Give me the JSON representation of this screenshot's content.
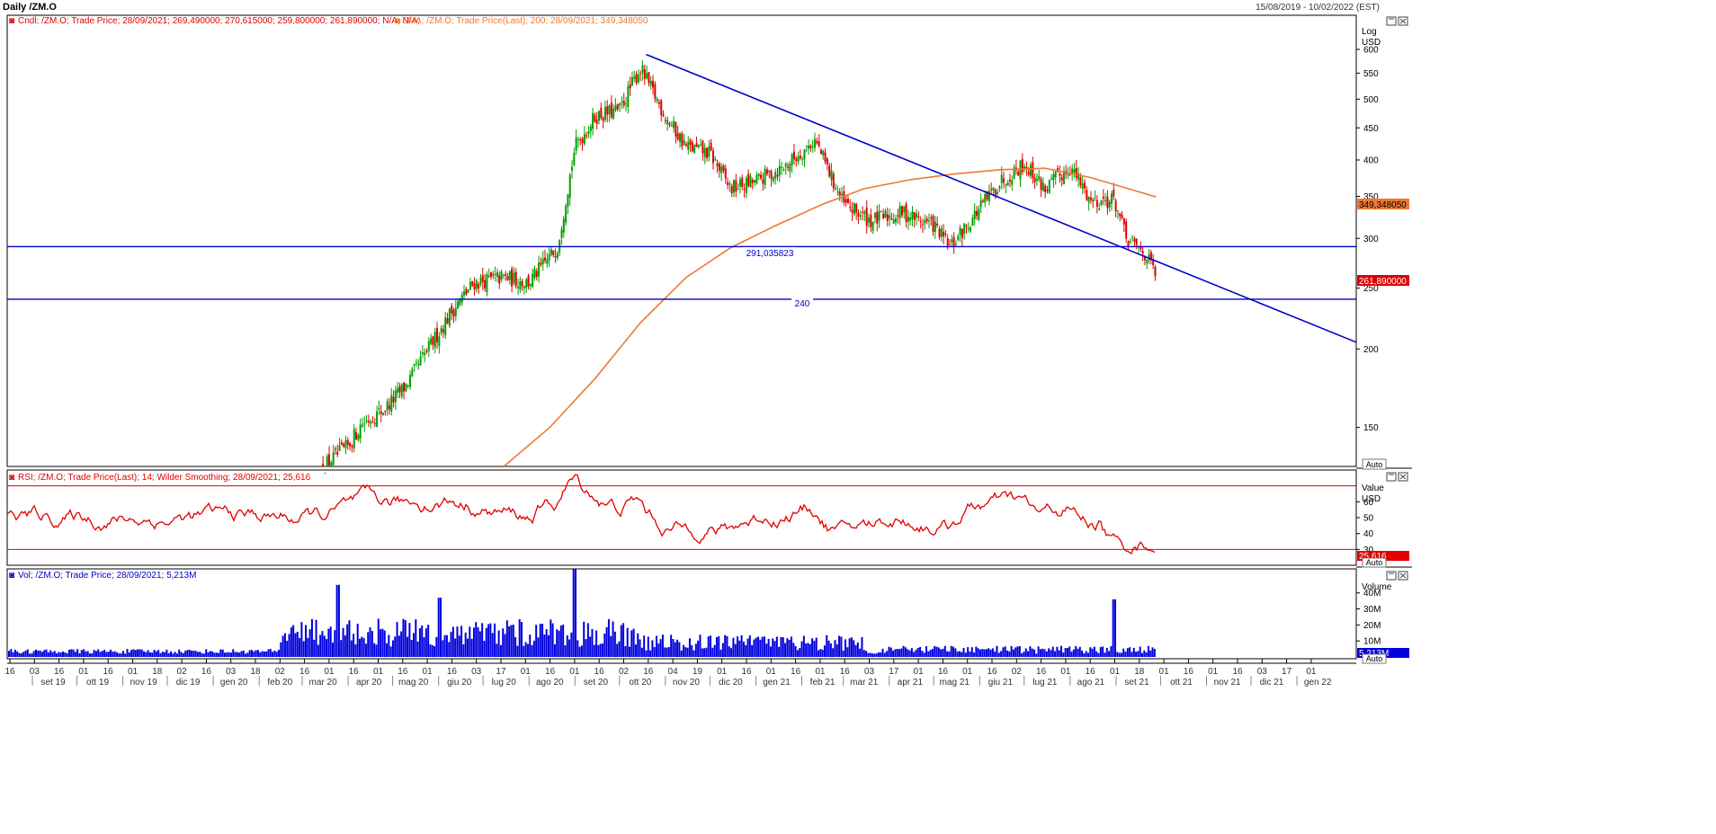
{
  "header": {
    "title": "Daily /ZM.O",
    "date_range": "15/08/2019 - 10/02/2022 (EST)"
  },
  "colors": {
    "up_candle": "#00a000",
    "down_candle": "#e00000",
    "sma": "#f07830",
    "trendline": "#0000cc",
    "rsi": "#e00000",
    "volume": "#0000dd",
    "legend_price": "#e00000",
    "legend_sma": "#f07830",
    "legend_vol": "#0000cc"
  },
  "icons": {
    "panel_window": "window-icon",
    "panel_close": "close-icon",
    "legend": "chart-icon"
  },
  "price_panel": {
    "legend_cndl": "Cndl; /ZM.O; Trade Price; 28/09/2021; 269,490000; 270,615000; 259,800000; 261,890000; N/A; N/A;",
    "legend_sma": "SMA; /ZM.O; Trade Price(Last); 200; 28/09/2021; 349,348050",
    "scale_label": "Log",
    "unit": "USD",
    "ticks": [
      "600",
      "550",
      "500",
      "450",
      "400",
      "350",
      "300",
      "250",
      "200",
      "150"
    ],
    "sma_last_label": "349,348050",
    "last_price_label": "261,890000",
    "auto_label": "Auto",
    "hline_labels": [
      "291,035823",
      "240"
    ]
  },
  "rsi_panel": {
    "legend": "RSI; /ZM.O; Trade Price(Last); 14; Wilder Smoothing; 28/09/2021; 25,616",
    "scale_label": "Value",
    "unit": "USD",
    "ticks": [
      "60",
      "50",
      "40",
      "30"
    ],
    "last_label": "25,616",
    "auto_label": "Auto"
  },
  "volume_panel": {
    "legend": "Vol; /ZM.O; Trade Price; 28/09/2021; 5,213M",
    "scale_label": "Volume",
    "ticks": [
      "40M",
      "30M",
      "20M",
      "10M"
    ],
    "last_label": "5,213M",
    "auto_label": "Auto"
  },
  "x_axis": {
    "day_ticks": [
      "16",
      "03",
      "16",
      "01",
      "16",
      "01",
      "18",
      "02",
      "16",
      "03",
      "18",
      "02",
      "16",
      "01",
      "16",
      "01",
      "16",
      "01",
      "16",
      "03",
      "17",
      "01",
      "16",
      "01",
      "16",
      "02",
      "16",
      "04",
      "19",
      "01",
      "16",
      "01",
      "16",
      "01",
      "16",
      "03",
      "17",
      "01",
      "16",
      "01",
      "16",
      "02",
      "16",
      "01",
      "16",
      "01",
      "18",
      "01",
      "16",
      "01",
      "16",
      "03",
      "17",
      "01"
    ],
    "months": [
      "set 19",
      "ott 19",
      "nov 19",
      "dic 19",
      "gen 20",
      "feb 20",
      "mar 20",
      "apr 20",
      "mag 20",
      "giu 20",
      "lug 20",
      "ago 20",
      "set 20",
      "ott 20",
      "nov 20",
      "dic 20",
      "gen 21",
      "feb 21",
      "mar 21",
      "apr 21",
      "mag 21",
      "giu 21",
      "lug 21",
      "ago 21",
      "set 21",
      "ott 21",
      "nov 21",
      "dic 21",
      "gen 22"
    ]
  },
  "chart_data": [
    {
      "type": "candlestick",
      "title": "Daily /ZM.O",
      "y_scale": "log",
      "ylabel": "USD",
      "ylim": [
        130,
        680
      ],
      "x_range": [
        "15/08/2019",
        "10/02/2022"
      ],
      "last_close": 261.89,
      "close_path_monthly": [
        {
          "date": "2020-03-15",
          "close": 130
        },
        {
          "date": "2020-04-01",
          "close": 140
        },
        {
          "date": "2020-04-10",
          "close": 152
        },
        {
          "date": "2020-04-25",
          "close": 160
        },
        {
          "date": "2020-05-10",
          "close": 175
        },
        {
          "date": "2020-05-25",
          "close": 200
        },
        {
          "date": "2020-06-10",
          "close": 230
        },
        {
          "date": "2020-06-25",
          "close": 255
        },
        {
          "date": "2020-07-15",
          "close": 260
        },
        {
          "date": "2020-08-01",
          "close": 255
        },
        {
          "date": "2020-08-20",
          "close": 290
        },
        {
          "date": "2020-09-01",
          "close": 420
        },
        {
          "date": "2020-09-15",
          "close": 470
        },
        {
          "date": "2020-10-01",
          "close": 480
        },
        {
          "date": "2020-10-15",
          "close": 560
        },
        {
          "date": "2020-11-01",
          "close": 470
        },
        {
          "date": "2020-11-15",
          "close": 420
        },
        {
          "date": "2020-12-01",
          "close": 410
        },
        {
          "date": "2020-12-15",
          "close": 360
        },
        {
          "date": "2021-01-01",
          "close": 370
        },
        {
          "date": "2021-01-20",
          "close": 390
        },
        {
          "date": "2021-02-10",
          "close": 430
        },
        {
          "date": "2021-03-01",
          "close": 340
        },
        {
          "date": "2021-03-20",
          "close": 320
        },
        {
          "date": "2021-04-10",
          "close": 330
        },
        {
          "date": "2021-05-01",
          "close": 315
        },
        {
          "date": "2021-05-12",
          "close": 290
        },
        {
          "date": "2021-06-01",
          "close": 335
        },
        {
          "date": "2021-06-15",
          "close": 370
        },
        {
          "date": "2021-07-01",
          "close": 395
        },
        {
          "date": "2021-07-15",
          "close": 360
        },
        {
          "date": "2021-08-01",
          "close": 390
        },
        {
          "date": "2021-08-15",
          "close": 345
        },
        {
          "date": "2021-08-31",
          "close": 345
        },
        {
          "date": "2021-09-08",
          "close": 298
        },
        {
          "date": "2021-09-20",
          "close": 285
        },
        {
          "date": "2021-09-28",
          "close": 262
        }
      ]
    },
    {
      "type": "line",
      "series": [
        {
          "name": "SMA 200",
          "values": [
            {
              "date": "2020-07-15",
              "value": 130
            },
            {
              "date": "2020-08-15",
              "value": 150
            },
            {
              "date": "2020-09-15",
              "value": 180
            },
            {
              "date": "2020-10-15",
              "value": 220
            },
            {
              "date": "2020-11-15",
              "value": 260
            },
            {
              "date": "2020-12-15",
              "value": 290
            },
            {
              "date": "2021-01-15",
              "value": 315
            },
            {
              "date": "2021-02-15",
              "value": 340
            },
            {
              "date": "2021-03-15",
              "value": 360
            },
            {
              "date": "2021-04-15",
              "value": 372
            },
            {
              "date": "2021-05-15",
              "value": 380
            },
            {
              "date": "2021-06-15",
              "value": 386
            },
            {
              "date": "2021-07-15",
              "value": 388
            },
            {
              "date": "2021-08-15",
              "value": 375
            },
            {
              "date": "2021-09-28",
              "value": 349.35
            }
          ]
        }
      ]
    },
    {
      "type": "line",
      "series": [
        {
          "name": "Trendline",
          "values": [
            {
              "date": "2020-10-19",
              "value": 589
            },
            {
              "date": "2022-02-10",
              "value": 205
            }
          ]
        }
      ]
    },
    {
      "type": "line",
      "series": [
        {
          "name": "291,035823",
          "values": [
            {
              "value": 291.035823
            }
          ]
        },
        {
          "name": "240",
          "values": [
            {
              "value": 240
            }
          ]
        }
      ]
    },
    {
      "type": "line",
      "title": "RSI 14 Wilder Smoothing",
      "ylabel": "Value",
      "ylim": [
        20,
        80
      ],
      "reference_lines": [
        70,
        30
      ],
      "last_value": 25.616
    },
    {
      "type": "bar",
      "title": "Vol",
      "ylabel": "Volume",
      "ylim": [
        0,
        55
      ],
      "last_value": "5,213M",
      "peaks": [
        {
          "date": "2020-03-25",
          "value": 45
        },
        {
          "date": "2020-06-02",
          "value": 37
        },
        {
          "date": "2020-09-01",
          "value": 55
        },
        {
          "date": "2021-08-31",
          "value": 36
        }
      ]
    }
  ]
}
